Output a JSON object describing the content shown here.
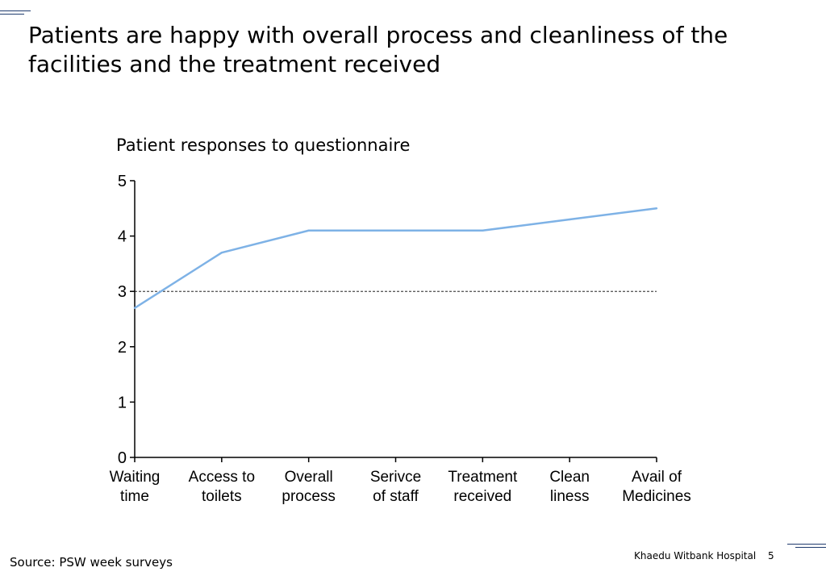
{
  "slide": {
    "title": "Patients are happy with overall process and cleanliness of the facilities and the treatment received",
    "source": "Source: PSW week surveys",
    "footer_org": "Khaedu Witbank Hospital",
    "page_number": "5"
  },
  "chart_data": {
    "type": "line",
    "title": "Patient responses to questionnaire",
    "xlabel": "",
    "ylabel": "",
    "categories": [
      [
        "Waiting",
        "time"
      ],
      [
        "Access to",
        "toilets"
      ],
      [
        "Overall",
        "process"
      ],
      [
        "Serivce",
        "of staff"
      ],
      [
        "Treatment",
        "received"
      ],
      [
        "Clean",
        "liness"
      ],
      [
        "Avail of",
        "Medicines"
      ]
    ],
    "series": [
      {
        "values": [
          2.7,
          3.7,
          4.1,
          4.1,
          4.1,
          4.3,
          4.5
        ],
        "color": "#7eb2e6"
      }
    ],
    "ylim": [
      0,
      5
    ],
    "yticks": [
      0,
      1,
      2,
      3,
      4,
      5
    ],
    "reference_line": {
      "y": 3,
      "style": "dashed",
      "color": "#000000"
    },
    "grid": false,
    "legend": "none"
  }
}
